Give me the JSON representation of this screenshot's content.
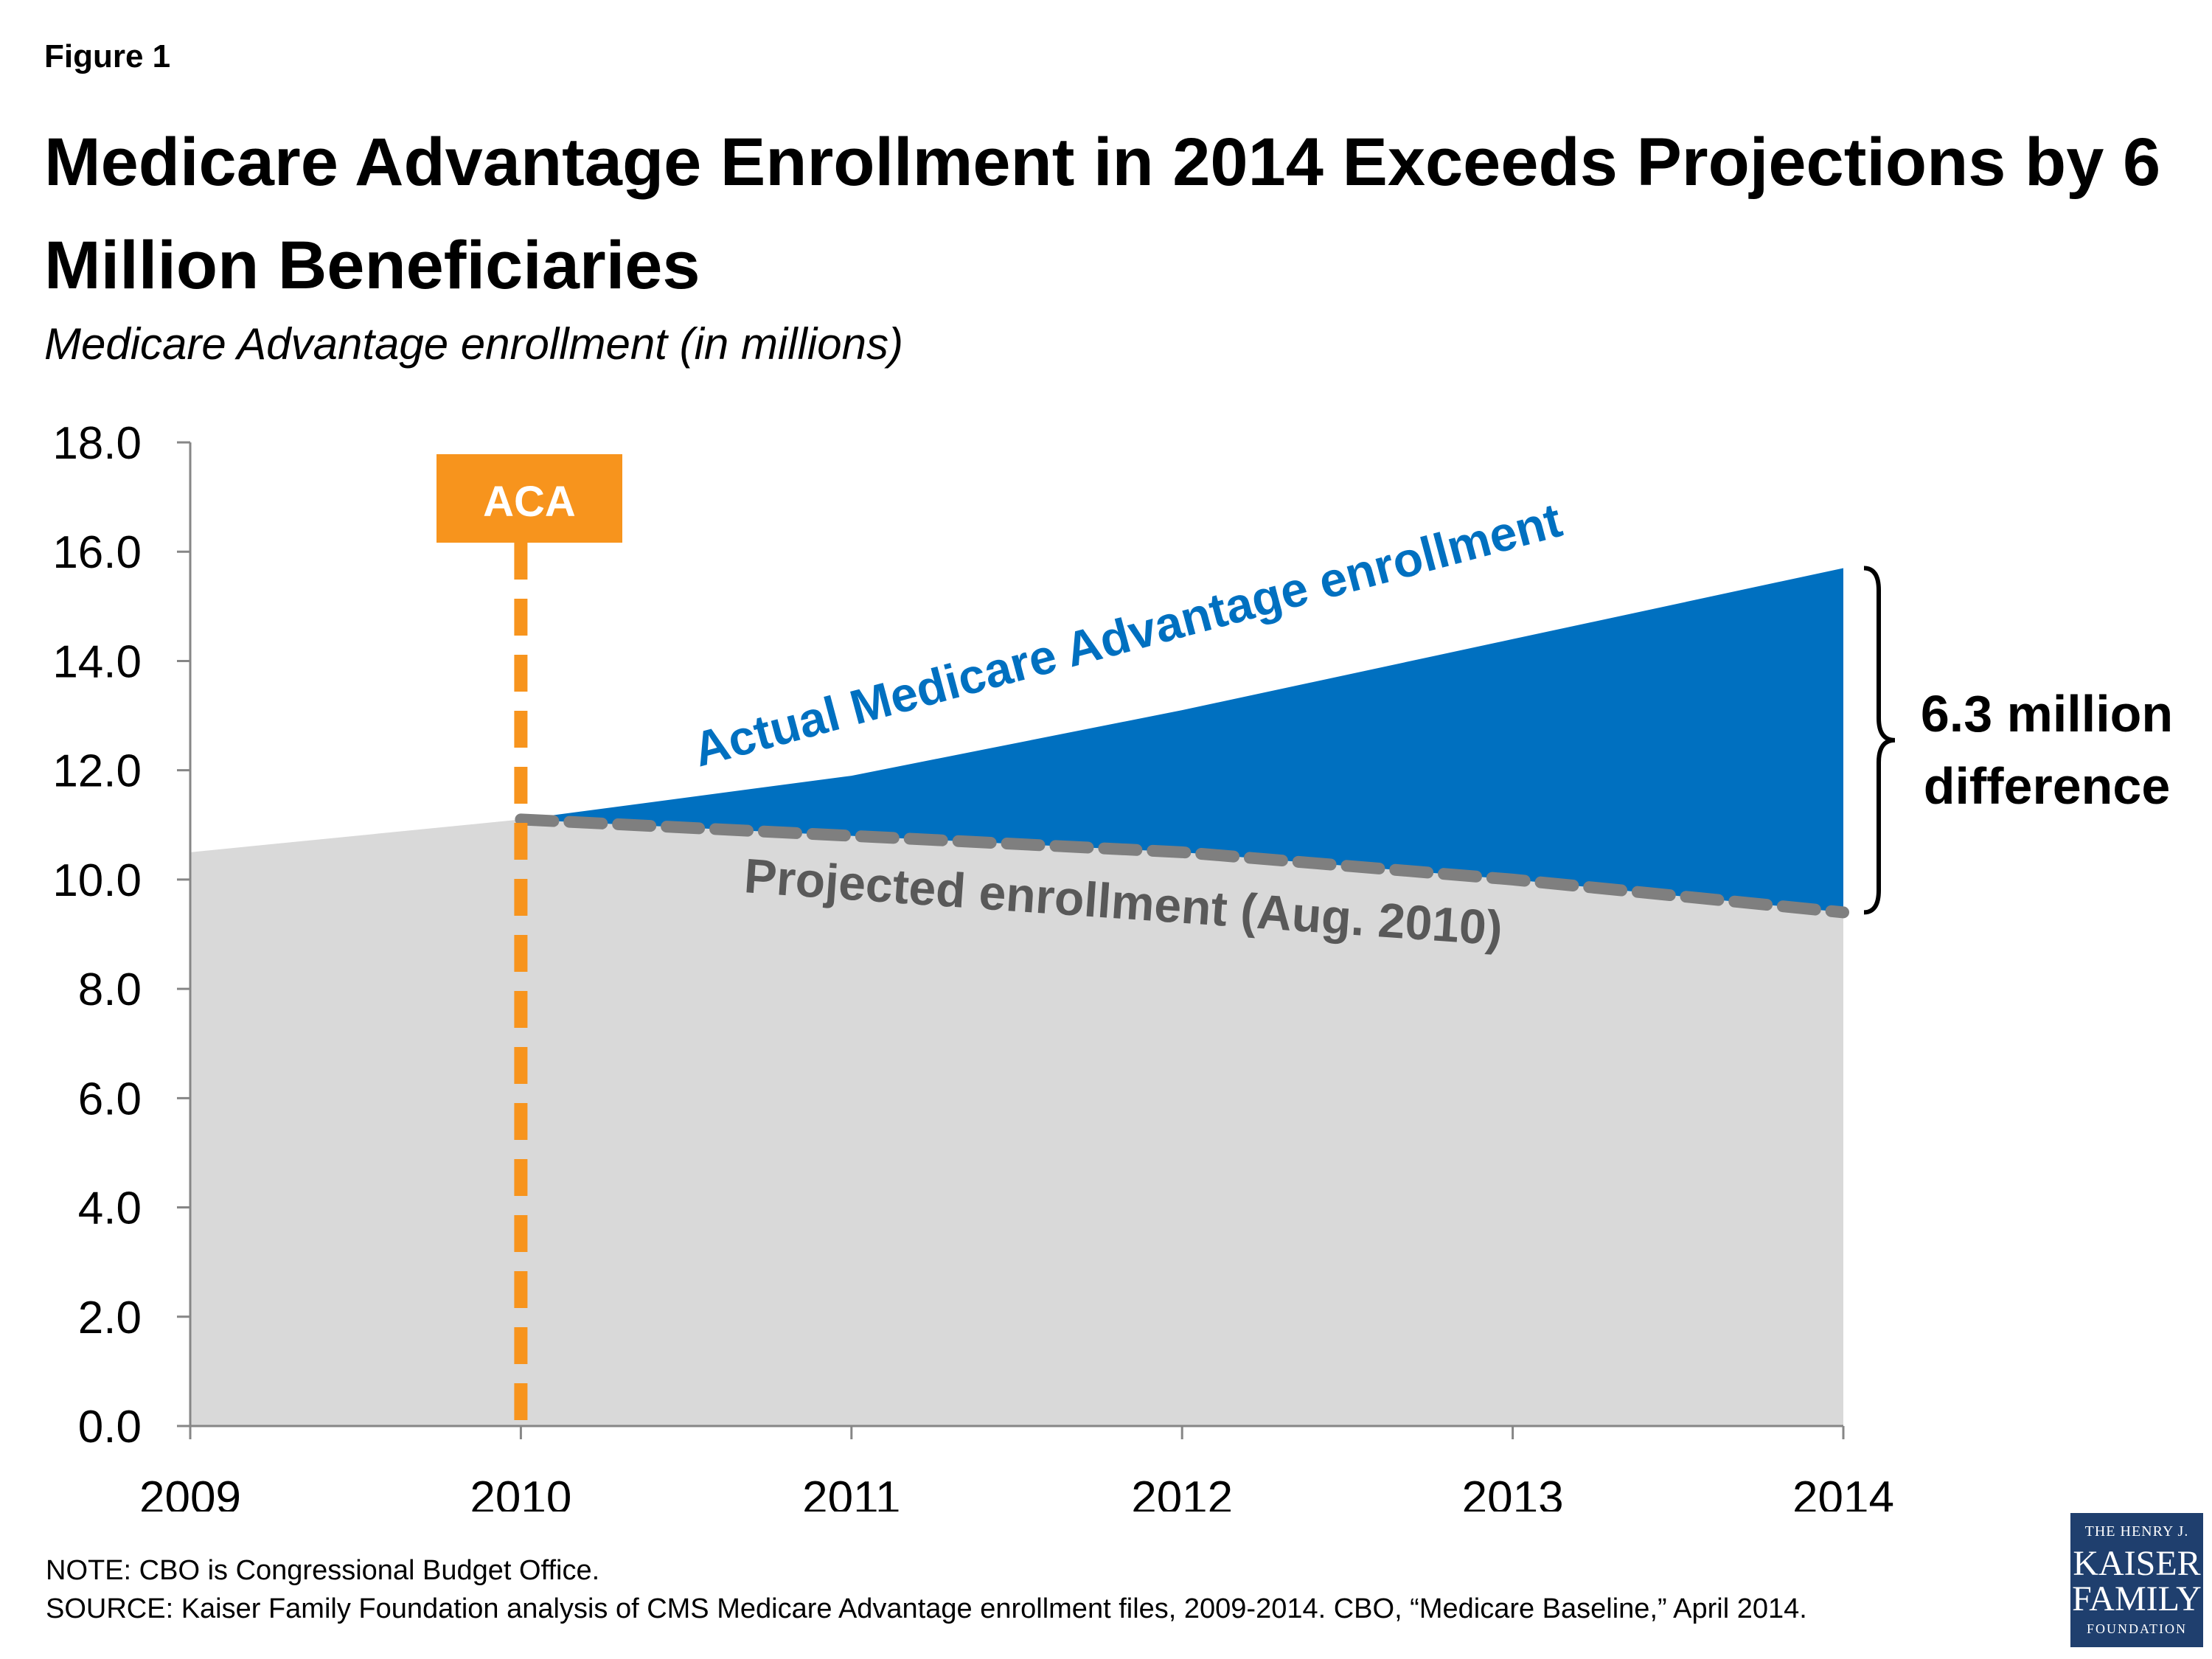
{
  "figure_label": "Figure 1",
  "title": "Medicare Advantage Enrollment in 2014 Exceeds Projections by 6 Million Beneficiaries",
  "subtitle": "Medicare Advantage enrollment (in millions)",
  "chart_data": {
    "type": "area",
    "x": [
      2009,
      2010,
      2011,
      2012,
      2013,
      2014
    ],
    "series": [
      {
        "name": "Actual Medicare Advantage enrollment",
        "values": [
          10.5,
          11.1,
          11.9,
          13.1,
          14.4,
          15.7
        ],
        "color": "#0070c0"
      },
      {
        "name": "Projected enrollment (Aug. 2010)",
        "x": [
          2010,
          2011,
          2012,
          2013,
          2014
        ],
        "values": [
          11.1,
          10.8,
          10.5,
          10.0,
          9.4
        ],
        "color": "#7f7f7f"
      }
    ],
    "baseline_fill_color": "#d9d9d9",
    "ylim": [
      0,
      18
    ],
    "yticks": [
      "0.0",
      "2.0",
      "4.0",
      "6.0",
      "8.0",
      "10.0",
      "12.0",
      "14.0",
      "16.0",
      "18.0"
    ],
    "xticks": [
      "2009",
      "2010",
      "2011",
      "2012",
      "2013",
      "2014"
    ],
    "grid": false,
    "annotations": {
      "aca": {
        "label": "ACA",
        "x": 2010,
        "color": "#f7941d"
      },
      "actual_label": "Actual Medicare Advantage enrollment",
      "projected_label": "Projected enrollment (Aug. 2010)",
      "difference_line1": "6.3 million",
      "difference_line2": "difference"
    }
  },
  "note": "NOTE: CBO is Congressional Budget Office.",
  "source": "SOURCE:  Kaiser Family Foundation analysis of CMS Medicare Advantage enrollment files, 2009-2014. CBO, “Medicare Baseline,” April 2014.",
  "logo": {
    "line1": "THE HENRY J.",
    "line2": "KAISER",
    "line3": "FAMILY",
    "line4": "FOUNDATION"
  }
}
